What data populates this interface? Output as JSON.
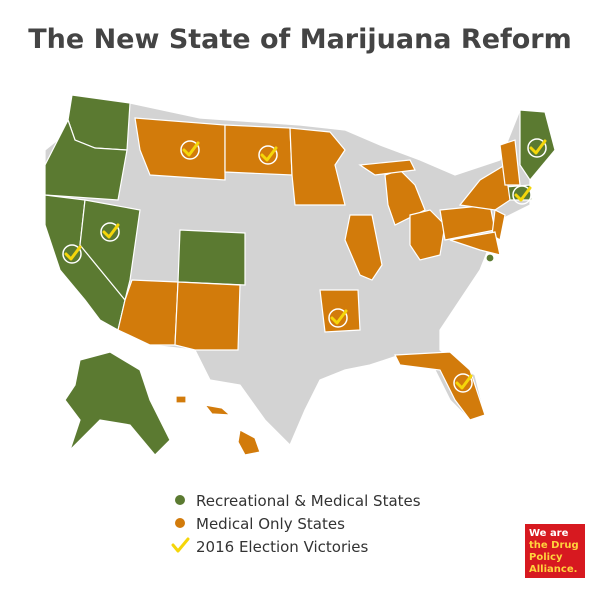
{
  "header": {
    "title": "The New State of Marijuana Reform"
  },
  "legend": {
    "items": [
      {
        "label": "Recreational & Medical States",
        "color": "#5b7a31"
      },
      {
        "label": "Medical Only States",
        "color": "#d27b0b"
      },
      {
        "label": "2016 Election Victories",
        "color": "#f5d60a"
      }
    ]
  },
  "logo": {
    "lines": [
      "We are",
      "the Drug",
      "Policy",
      "Alliance."
    ],
    "color": "#d71920"
  }
}
